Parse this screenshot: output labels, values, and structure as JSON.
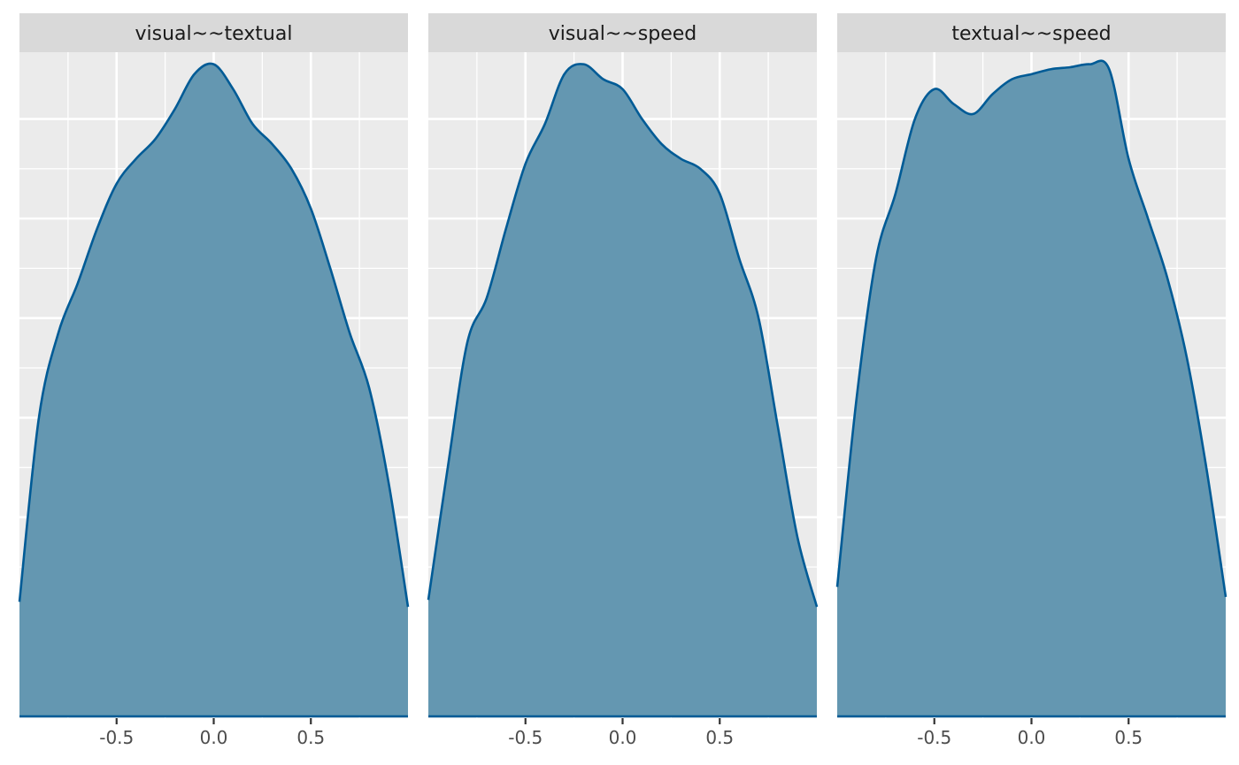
{
  "chart_data": {
    "type": "area",
    "kind": "faceted density plot",
    "xlim": [
      -1,
      1
    ],
    "x_ticks": [
      -0.5,
      0.0,
      0.5
    ],
    "x_tick_labels": [
      "-0.5",
      "0.0",
      "0.5"
    ],
    "y_axis_labels_shown": false,
    "grid": true,
    "legend": "none",
    "fill_color": "#6497b1",
    "line_color": "#005b96",
    "panel_background": "#ebebeb",
    "strip_background": "#d9d9d9",
    "x": [
      -1.0,
      -0.9,
      -0.8,
      -0.7,
      -0.6,
      -0.5,
      -0.4,
      -0.3,
      -0.2,
      -0.1,
      0.0,
      0.1,
      0.2,
      0.3,
      0.4,
      0.5,
      0.6,
      0.7,
      0.8,
      0.9,
      1.0
    ],
    "ymax": 0.66,
    "facets": [
      {
        "label": "visual~~textual",
        "y": [
          0.115,
          0.3,
          0.385,
          0.435,
          0.49,
          0.535,
          0.56,
          0.58,
          0.61,
          0.645,
          0.655,
          0.63,
          0.595,
          0.575,
          0.55,
          0.51,
          0.45,
          0.385,
          0.33,
          0.235,
          0.11
        ]
      },
      {
        "label": "visual~~speed",
        "y": [
          0.117,
          0.25,
          0.375,
          0.42,
          0.49,
          0.555,
          0.595,
          0.645,
          0.655,
          0.64,
          0.63,
          0.6,
          0.575,
          0.56,
          0.55,
          0.525,
          0.46,
          0.4,
          0.29,
          0.18,
          0.11
        ]
      },
      {
        "label": "textual~~speed",
        "y": [
          0.13,
          0.32,
          0.46,
          0.525,
          0.6,
          0.63,
          0.615,
          0.605,
          0.625,
          0.64,
          0.645,
          0.65,
          0.652,
          0.655,
          0.65,
          0.56,
          0.5,
          0.44,
          0.36,
          0.25,
          0.12
        ]
      }
    ]
  }
}
